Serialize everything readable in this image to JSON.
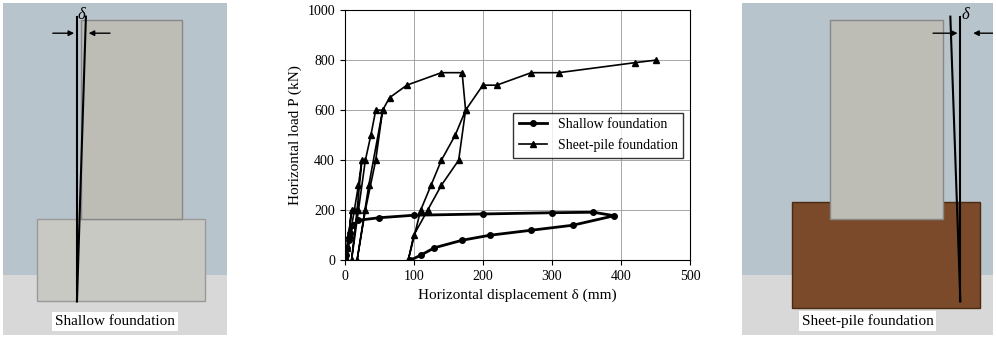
{
  "chart_data": {
    "type": "line",
    "x_label": "Horizontal displacement δ (mm)",
    "y_label": "Horizontal load P (kN)",
    "xlim": [
      0,
      500
    ],
    "xticks": [
      0,
      100,
      200,
      300,
      400,
      500
    ],
    "ylim": [
      0,
      1000
    ],
    "yticks": [
      0,
      200,
      400,
      600,
      800,
      1000
    ],
    "grid": true,
    "legend": "center right",
    "series": [
      {
        "name": "Shallow foundation",
        "color": "#000000",
        "marker": "circle",
        "line_style": "solid",
        "x": [
          0,
          2,
          4,
          6,
          8,
          12,
          20,
          50,
          100,
          200,
          300,
          360,
          390,
          330,
          270,
          210,
          170,
          130,
          110,
          95
        ],
        "values": [
          0,
          20,
          50,
          80,
          110,
          140,
          160,
          170,
          180,
          185,
          190,
          192,
          178,
          140,
          120,
          100,
          80,
          50,
          20,
          0
        ]
      },
      {
        "name": "Sheet-pile foundation",
        "color": "#000000",
        "marker": "triangle",
        "line_style": "solid",
        "x": [
          0,
          3,
          6,
          10,
          6,
          3,
          8,
          14,
          20,
          25,
          18,
          10,
          20,
          30,
          38,
          45,
          55,
          35,
          18,
          30,
          45,
          55,
          65,
          90,
          140,
          170,
          175,
          165,
          140,
          120,
          100,
          92,
          110,
          125,
          140,
          160,
          175,
          200,
          220,
          270,
          310,
          420,
          450
        ],
        "values": [
          0,
          50,
          100,
          200,
          100,
          0,
          100,
          200,
          300,
          400,
          200,
          0,
          200,
          400,
          500,
          600,
          600,
          300,
          0,
          200,
          400,
          600,
          650,
          700,
          750,
          750,
          600,
          400,
          300,
          200,
          100,
          0,
          200,
          300,
          400,
          500,
          600,
          700,
          700,
          750,
          750,
          790,
          800
        ]
      }
    ]
  },
  "photos": [
    {
      "caption": "Shallow foundation",
      "symbol": "δ"
    },
    {
      "caption": "Sheet-pile foundation",
      "symbol": "δ"
    }
  ]
}
